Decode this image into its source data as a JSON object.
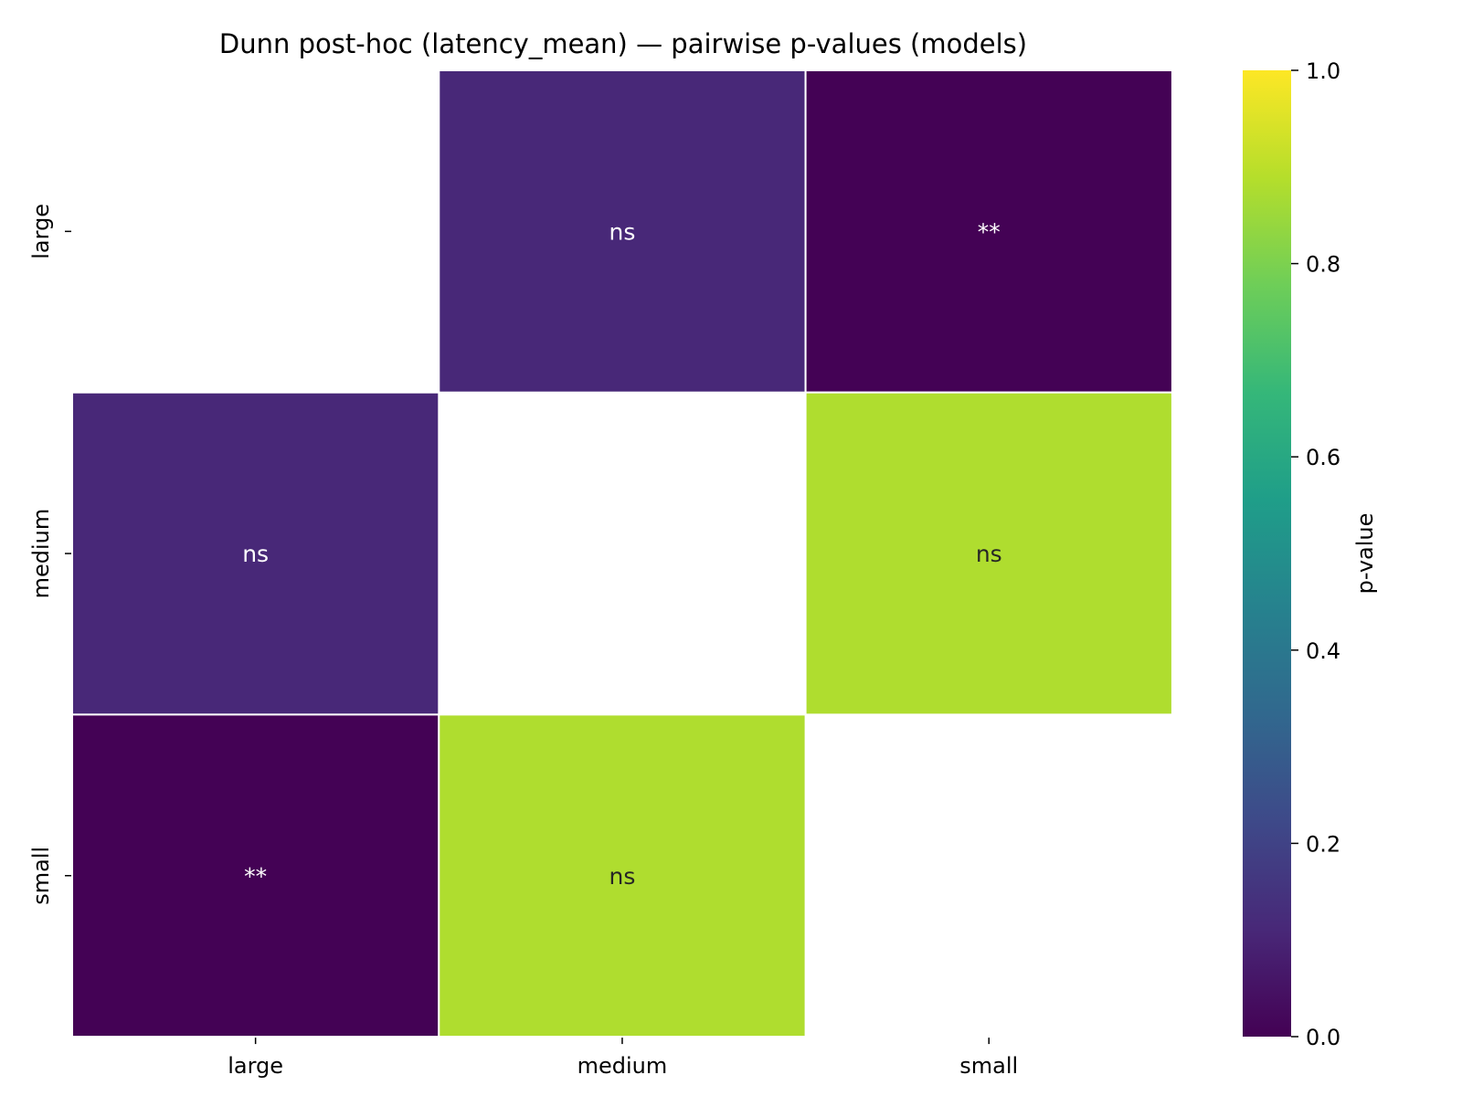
{
  "chart_data": {
    "type": "heatmap",
    "title": "Dunn post-hoc (latency_mean) — pairwise p-values (models)",
    "row_labels": [
      "large",
      "medium",
      "small"
    ],
    "col_labels": [
      "large",
      "medium",
      "small"
    ],
    "values": [
      [
        null,
        0.11,
        0.004
      ],
      [
        0.11,
        null,
        0.88
      ],
      [
        0.004,
        0.88,
        null
      ]
    ],
    "annotations": [
      [
        "",
        "ns",
        "**"
      ],
      [
        "ns",
        "",
        "ns"
      ],
      [
        "**",
        "ns",
        ""
      ]
    ],
    "colormap": "viridis",
    "colorbar": {
      "label": "p-value",
      "range": [
        0.0,
        1.0
      ],
      "ticks": [
        "0.0",
        "0.2",
        "0.4",
        "0.6",
        "0.8",
        "1.0"
      ]
    },
    "colors": {
      "viridis": [
        "#440154",
        "#482878",
        "#3e4989",
        "#31688e",
        "#26828e",
        "#1f9e89",
        "#35b779",
        "#6ece58",
        "#b5de2b",
        "#fde725"
      ]
    }
  }
}
